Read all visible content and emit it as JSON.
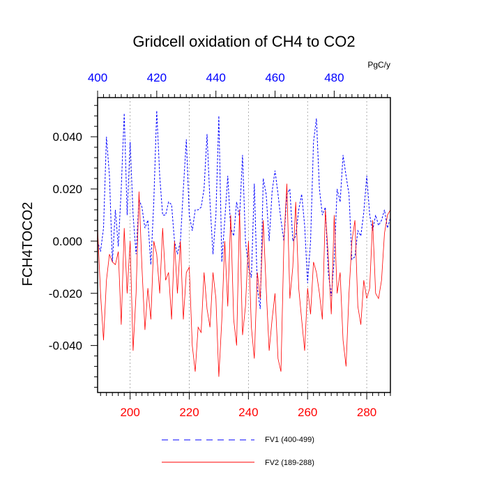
{
  "chart_data": {
    "type": "line",
    "title": "Gridcell oxidation of CH4 to CO2",
    "ylabel": "FCH4TOCO2",
    "units": "PgC/y",
    "ylim": [
      -0.058,
      0.055
    ],
    "y_ticks": [
      "0.040",
      "0.020",
      "0.000",
      "-0.020",
      "-0.040"
    ],
    "y_tick_values": [
      0.04,
      0.02,
      0.0,
      -0.02,
      -0.04
    ],
    "bottom_axis": {
      "range": [
        189,
        288
      ],
      "ticks": [
        "200",
        "220",
        "240",
        "260",
        "280"
      ],
      "tick_values": [
        200,
        220,
        240,
        260,
        280
      ],
      "color": "#ff0000"
    },
    "top_axis": {
      "range": [
        400,
        499
      ],
      "ticks": [
        "400",
        "420",
        "440",
        "460",
        "480"
      ],
      "tick_values": [
        400,
        420,
        440,
        460,
        480
      ],
      "color": "#0000ff"
    },
    "gridlines": "vertical dotted at major bottom ticks",
    "legend_position": "bottom",
    "series": [
      {
        "name": "FV1 (400-499)",
        "color": "#0000ff",
        "style": "dashed",
        "x_start": 400,
        "values": [
          0.0,
          -0.004,
          0.005,
          0.04,
          0.025,
          -0.008,
          0.012,
          -0.002,
          0.02,
          0.049,
          0.01,
          0.038,
          0.01,
          -0.005,
          0.016,
          0.013,
          0.005,
          0.008,
          -0.009,
          0.015,
          0.05,
          0.025,
          0.01,
          0.01,
          0.015,
          0.014,
          0.0,
          -0.005,
          0.0,
          0.02,
          0.039,
          0.01,
          0.004,
          0.012,
          0.012,
          0.013,
          0.02,
          0.041,
          0.015,
          -0.005,
          0.01,
          0.048,
          -0.008,
          0.008,
          0.025,
          0.005,
          0.002,
          0.015,
          0.009,
          0.033,
          0.0,
          -0.01,
          -0.014,
          0.022,
          -0.018,
          -0.026,
          0.024,
          0.018,
          0.0,
          0.019,
          0.027,
          0.018,
          0.008,
          0.0,
          0.018,
          0.02,
          0.0,
          0.002,
          0.012,
          0.018,
          0.006,
          -0.016,
          0.0,
          0.038,
          0.047,
          0.02,
          0.01,
          0.013,
          -0.012,
          -0.021,
          -0.007,
          0.02,
          0.015,
          0.033,
          0.025,
          0.018,
          -0.007,
          -0.006,
          0.004,
          0.002,
          0.011,
          0.025,
          0.01,
          0.004,
          0.01,
          0.006,
          0.008,
          0.012,
          0.005,
          0.009
        ]
      },
      {
        "name": "FV2 (189-288)",
        "color": "#ff0000",
        "style": "solid",
        "x_start": 189,
        "values": [
          0.005,
          -0.02,
          -0.038,
          -0.015,
          -0.005,
          -0.008,
          -0.009,
          -0.004,
          -0.032,
          0.005,
          -0.02,
          0.0,
          -0.042,
          -0.02,
          0.019,
          -0.01,
          -0.034,
          -0.018,
          -0.03,
          0.0,
          -0.005,
          -0.02,
          0.005,
          -0.015,
          -0.012,
          -0.03,
          0.0,
          -0.02,
          0.0,
          -0.03,
          -0.012,
          -0.01,
          -0.04,
          -0.05,
          -0.033,
          -0.035,
          -0.012,
          -0.026,
          -0.033,
          -0.012,
          -0.022,
          -0.052,
          -0.03,
          0.0,
          -0.025,
          0.01,
          -0.03,
          -0.04,
          0.012,
          -0.036,
          -0.025,
          0.0,
          -0.033,
          -0.045,
          -0.012,
          -0.022,
          0.008,
          -0.018,
          -0.042,
          -0.03,
          -0.02,
          -0.045,
          -0.05,
          0.0,
          0.022,
          -0.022,
          -0.01,
          0.015,
          -0.018,
          -0.03,
          -0.042,
          -0.018,
          -0.028,
          -0.008,
          -0.012,
          -0.02,
          -0.03,
          0.012,
          -0.006,
          -0.028,
          0.01,
          -0.02,
          -0.012,
          -0.038,
          -0.048,
          -0.02,
          0.0,
          0.008,
          -0.025,
          -0.032,
          -0.015,
          -0.022,
          -0.018,
          0.008,
          -0.02,
          -0.022,
          -0.015,
          0.003,
          0.01,
          0.012
        ]
      }
    ]
  }
}
